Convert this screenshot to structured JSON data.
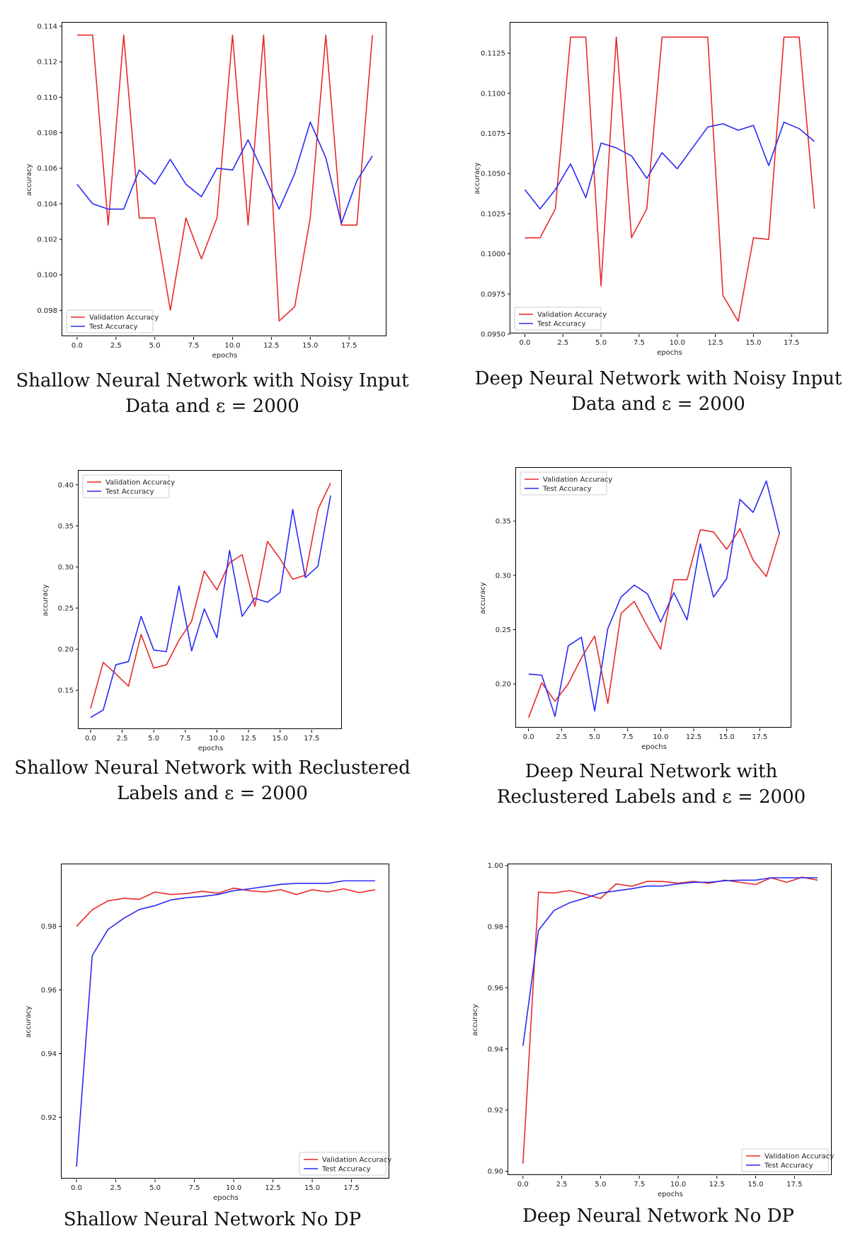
{
  "colors": {
    "validation": "#e8292b",
    "test": "#2a2af5"
  },
  "chart_data": [
    {
      "type": "line",
      "caption": "Shallow Neural Network with Noisy Input Data and ε = 2000",
      "xlabel": "epochs",
      "ylabel": "accuracy",
      "xlim": [
        -0.95,
        19.95
      ],
      "ylim": [
        0.0965,
        0.1142
      ],
      "xticks": [
        0.0,
        2.5,
        5.0,
        7.5,
        10.0,
        12.5,
        15.0,
        17.5
      ],
      "xtick_labels": [
        "0.0",
        "2.5",
        "5.0",
        "7.5",
        "10.0",
        "12.5",
        "15.0",
        "17.5"
      ],
      "yticks": [
        0.098,
        0.1,
        0.102,
        0.104,
        0.106,
        0.108,
        0.11,
        0.112,
        0.114
      ],
      "ytick_labels": [
        "0.098",
        "0.100",
        "0.102",
        "0.104",
        "0.106",
        "0.108",
        "0.110",
        "0.112",
        "0.114"
      ],
      "legend_position": "lower-left",
      "x": [
        0,
        1,
        2,
        3,
        4,
        5,
        6,
        7,
        8,
        9,
        10,
        11,
        12,
        13,
        14,
        15,
        16,
        17,
        18,
        19
      ],
      "series": [
        {
          "name": "Validation Accuracy",
          "color": "#e8292b",
          "values": [
            0.1135,
            0.1135,
            0.1028,
            0.1135,
            0.1032,
            0.1032,
            0.098,
            0.1032,
            0.1009,
            0.1032,
            0.1135,
            0.1028,
            0.1135,
            0.0974,
            0.0982,
            0.1032,
            0.1135,
            0.1028,
            0.1028,
            0.1135
          ]
        },
        {
          "name": "Test Accuracy",
          "color": "#2a2af5",
          "values": [
            0.1051,
            0.104,
            0.1037,
            0.1037,
            0.1059,
            0.1051,
            0.1065,
            0.1051,
            0.1044,
            0.106,
            0.1059,
            0.1076,
            0.1057,
            0.1037,
            0.1057,
            0.1086,
            0.1066,
            0.1029,
            0.1053,
            0.1067
          ]
        }
      ]
    },
    {
      "type": "line",
      "caption": "Deep Neural Network with Noisy Input Data and ε = 2000",
      "xlabel": "epochs",
      "ylabel": "accuracy",
      "xlim": [
        -0.95,
        19.95
      ],
      "ylim": [
        0.095,
        0.1144
      ],
      "xticks": [
        0.0,
        2.5,
        5.0,
        7.5,
        10.0,
        12.5,
        15.0,
        17.5
      ],
      "xtick_labels": [
        "0.0",
        "2.5",
        "5.0",
        "7.5",
        "10.0",
        "12.5",
        "15.0",
        "17.5"
      ],
      "yticks": [
        0.095,
        0.0975,
        0.1,
        0.1025,
        0.105,
        0.1075,
        0.11,
        0.1125
      ],
      "ytick_labels": [
        "0.0950",
        "0.0975",
        "0.1000",
        "0.1025",
        "0.1050",
        "0.1075",
        "0.1100",
        "0.1125"
      ],
      "legend_position": "lower-left",
      "x": [
        0,
        1,
        2,
        3,
        4,
        5,
        6,
        7,
        8,
        9,
        10,
        11,
        12,
        13,
        14,
        15,
        16,
        17,
        18,
        19
      ],
      "series": [
        {
          "name": "Validation Accuracy",
          "color": "#e8292b",
          "values": [
            0.101,
            0.101,
            0.1028,
            0.1135,
            0.1135,
            0.098,
            0.1135,
            0.101,
            0.1028,
            0.1135,
            0.1135,
            0.1135,
            0.1135,
            0.0974,
            0.0958,
            0.101,
            0.1009,
            0.1135,
            0.1135,
            0.1028
          ]
        },
        {
          "name": "Test Accuracy",
          "color": "#2a2af5",
          "values": [
            0.104,
            0.1028,
            0.104,
            0.1056,
            0.1035,
            0.1069,
            0.1066,
            0.1061,
            0.1047,
            0.1063,
            0.1053,
            0.1066,
            0.1079,
            0.1081,
            0.1077,
            0.108,
            0.1055,
            0.1082,
            0.1078,
            0.107
          ]
        }
      ]
    },
    {
      "type": "line",
      "caption": "Shallow Neural Network with Reclustered Labels and ε = 2000",
      "xlabel": "epochs",
      "ylabel": "accuracy",
      "xlim": [
        -0.95,
        19.95
      ],
      "ylim": [
        0.102,
        0.417
      ],
      "xticks": [
        0.0,
        2.5,
        5.0,
        7.5,
        10.0,
        12.5,
        15.0,
        17.5
      ],
      "xtick_labels": [
        "0.0",
        "2.5",
        "5.0",
        "7.5",
        "10.0",
        "12.5",
        "15.0",
        "17.5"
      ],
      "yticks": [
        0.15,
        0.2,
        0.25,
        0.3,
        0.35,
        0.4
      ],
      "ytick_labels": [
        "0.15",
        "0.20",
        "0.25",
        "0.30",
        "0.35",
        "0.40"
      ],
      "legend_position": "upper-left",
      "x": [
        0,
        1,
        2,
        3,
        4,
        5,
        6,
        7,
        8,
        9,
        10,
        11,
        12,
        13,
        14,
        15,
        16,
        17,
        18,
        19
      ],
      "series": [
        {
          "name": "Validation Accuracy",
          "color": "#e8292b",
          "values": [
            0.128,
            0.184,
            0.17,
            0.155,
            0.218,
            0.177,
            0.181,
            0.211,
            0.234,
            0.295,
            0.272,
            0.305,
            0.315,
            0.252,
            0.331,
            0.31,
            0.285,
            0.29,
            0.37,
            0.402
          ]
        },
        {
          "name": "Test Accuracy",
          "color": "#2a2af5",
          "values": [
            0.117,
            0.126,
            0.181,
            0.185,
            0.24,
            0.199,
            0.197,
            0.277,
            0.198,
            0.249,
            0.214,
            0.32,
            0.24,
            0.262,
            0.257,
            0.269,
            0.37,
            0.287,
            0.301,
            0.387
          ]
        }
      ]
    },
    {
      "type": "line",
      "caption": "Deep Neural Network with Reclustered Labels and ε = 2000",
      "xlabel": "epochs",
      "ylabel": "accuracy",
      "xlim": [
        -0.95,
        19.95
      ],
      "ylim": [
        0.159,
        0.399
      ],
      "xticks": [
        0.0,
        2.5,
        5.0,
        7.5,
        10.0,
        12.5,
        15.0,
        17.5
      ],
      "xtick_labels": [
        "0.0",
        "2.5",
        "5.0",
        "7.5",
        "10.0",
        "12.5",
        "15.0",
        "17.5"
      ],
      "yticks": [
        0.2,
        0.25,
        0.3,
        0.35
      ],
      "ytick_labels": [
        "0.20",
        "0.25",
        "0.30",
        "0.35"
      ],
      "legend_position": "upper-left",
      "x": [
        0,
        1,
        2,
        3,
        4,
        5,
        6,
        7,
        8,
        9,
        10,
        11,
        12,
        13,
        14,
        15,
        16,
        17,
        18,
        19
      ],
      "series": [
        {
          "name": "Validation Accuracy",
          "color": "#e8292b",
          "values": [
            0.169,
            0.201,
            0.184,
            0.2,
            0.224,
            0.244,
            0.182,
            0.265,
            0.276,
            0.253,
            0.232,
            0.296,
            0.296,
            0.342,
            0.34,
            0.324,
            0.343,
            0.314,
            0.299,
            0.339
          ]
        },
        {
          "name": "Test Accuracy",
          "color": "#2a2af5",
          "values": [
            0.209,
            0.208,
            0.17,
            0.235,
            0.243,
            0.175,
            0.251,
            0.28,
            0.291,
            0.283,
            0.257,
            0.284,
            0.259,
            0.329,
            0.28,
            0.297,
            0.37,
            0.358,
            0.387,
            0.338
          ]
        }
      ]
    },
    {
      "type": "line",
      "caption": "Shallow Neural Network No DP",
      "xlabel": "epochs",
      "ylabel": "accuracy",
      "xlim": [
        -0.95,
        19.95
      ],
      "ylim": [
        0.9005,
        0.9995
      ],
      "xticks": [
        0.0,
        2.5,
        5.0,
        7.5,
        10.0,
        12.5,
        15.0,
        17.5
      ],
      "xtick_labels": [
        "0.0",
        "2.5",
        "5.0",
        "7.5",
        "10.0",
        "12.5",
        "15.0",
        "17.5"
      ],
      "yticks": [
        0.92,
        0.94,
        0.96,
        0.98
      ],
      "ytick_labels": [
        "0.92",
        "0.94",
        "0.96",
        "0.98"
      ],
      "legend_position": "lower-right",
      "x": [
        0,
        1,
        2,
        3,
        4,
        5,
        6,
        7,
        8,
        9,
        10,
        11,
        12,
        13,
        14,
        15,
        16,
        17,
        18,
        19
      ],
      "series": [
        {
          "name": "Validation Accuracy",
          "color": "#e8292b",
          "values": [
            0.98,
            0.9852,
            0.988,
            0.9888,
            0.9885,
            0.9908,
            0.99,
            0.9903,
            0.991,
            0.9904,
            0.992,
            0.9912,
            0.9908,
            0.9915,
            0.99,
            0.9915,
            0.9908,
            0.9918,
            0.9906,
            0.9915
          ]
        },
        {
          "name": "Test Accuracy",
          "color": "#2a2af5",
          "values": [
            0.9045,
            0.9708,
            0.979,
            0.9825,
            0.9853,
            0.9865,
            0.9883,
            0.989,
            0.9894,
            0.99,
            0.9912,
            0.9918,
            0.9925,
            0.9932,
            0.9935,
            0.9935,
            0.9935,
            0.9943,
            0.9943,
            0.9943
          ]
        }
      ]
    },
    {
      "type": "line",
      "caption": "Deep Neural Network No DP",
      "xlabel": "epochs",
      "ylabel": "accuracy",
      "xlim": [
        -0.95,
        19.95
      ],
      "ylim": [
        0.8985,
        1.0004
      ],
      "xticks": [
        0.0,
        2.5,
        5.0,
        7.5,
        10.0,
        12.5,
        15.0,
        17.5
      ],
      "xtick_labels": [
        "0.0",
        "2.5",
        "5.0",
        "7.5",
        "10.0",
        "12.5",
        "15.0",
        "17.5"
      ],
      "yticks": [
        0.9,
        0.92,
        0.94,
        0.96,
        0.98,
        1.0
      ],
      "ytick_labels": [
        "0.90",
        "0.92",
        "0.94",
        "0.96",
        "0.98",
        "1.00"
      ],
      "legend_position": "lower-right",
      "x": [
        0,
        1,
        2,
        3,
        4,
        5,
        6,
        7,
        8,
        9,
        10,
        11,
        12,
        13,
        14,
        15,
        16,
        17,
        18,
        19
      ],
      "series": [
        {
          "name": "Validation Accuracy",
          "color": "#e8292b",
          "values": [
            0.9025,
            0.9913,
            0.991,
            0.9918,
            0.9906,
            0.9892,
            0.994,
            0.9932,
            0.9948,
            0.9948,
            0.9942,
            0.9948,
            0.9942,
            0.9952,
            0.9945,
            0.9938,
            0.996,
            0.9945,
            0.9962,
            0.9952
          ]
        },
        {
          "name": "Test Accuracy",
          "color": "#2a2af5",
          "values": [
            0.941,
            0.9788,
            0.9853,
            0.9878,
            0.9893,
            0.991,
            0.9917,
            0.9924,
            0.9933,
            0.9933,
            0.994,
            0.9945,
            0.9945,
            0.995,
            0.9952,
            0.9952,
            0.996,
            0.996,
            0.996,
            0.996
          ]
        }
      ]
    }
  ]
}
